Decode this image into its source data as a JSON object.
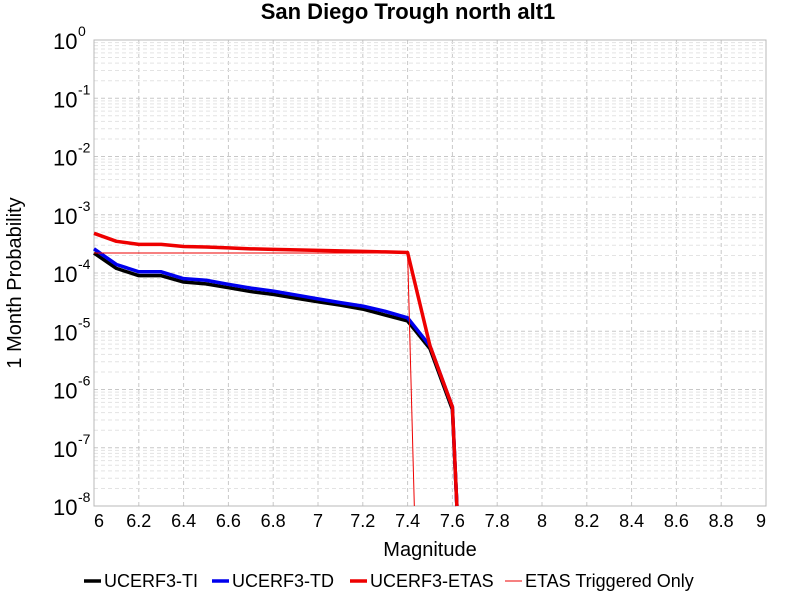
{
  "chart_data": {
    "type": "line",
    "title": "San Diego Trough north alt1",
    "xlabel": "Magnitude",
    "ylabel": "1 Month Probability",
    "xlim": [
      6,
      9
    ],
    "ylim": [
      1e-08,
      1
    ],
    "yscale": "log",
    "grid": true,
    "legend_position": "bottom",
    "x_ticks": [
      "6",
      "6.2",
      "6.4",
      "6.6",
      "6.8",
      "7",
      "7.2",
      "7.4",
      "7.6",
      "7.8",
      "8",
      "8.2",
      "8.4",
      "8.6",
      "8.8",
      "9"
    ],
    "y_ticks": [
      {
        "base": "10",
        "exp": "0"
      },
      {
        "base": "10",
        "exp": "-1"
      },
      {
        "base": "10",
        "exp": "-2"
      },
      {
        "base": "10",
        "exp": "-3"
      },
      {
        "base": "10",
        "exp": "-4"
      },
      {
        "base": "10",
        "exp": "-5"
      },
      {
        "base": "10",
        "exp": "-6"
      },
      {
        "base": "10",
        "exp": "-7"
      },
      {
        "base": "10",
        "exp": "-8"
      }
    ],
    "series": [
      {
        "name": "UCERF3-TI",
        "color": "#000000",
        "width": "thick",
        "x": [
          6.0,
          6.1,
          6.2,
          6.3,
          6.4,
          6.5,
          6.6,
          6.7,
          6.8,
          6.9,
          7.0,
          7.1,
          7.2,
          7.3,
          7.4,
          7.5,
          7.6,
          7.62
        ],
        "y": [
          0.00022,
          0.00012,
          9e-05,
          9e-05,
          7e-05,
          6.5e-05,
          5.6e-05,
          4.8e-05,
          4.3e-05,
          3.7e-05,
          3.2e-05,
          2.8e-05,
          2.4e-05,
          1.9e-05,
          1.5e-05,
          5e-06,
          4.5e-07,
          1e-08
        ]
      },
      {
        "name": "UCERF3-TD",
        "color": "#0000ee",
        "width": "thick",
        "x": [
          6.0,
          6.1,
          6.2,
          6.3,
          6.4,
          6.5,
          6.6,
          6.7,
          6.8,
          6.9,
          7.0,
          7.1,
          7.2,
          7.3,
          7.4,
          7.5,
          7.6,
          7.62
        ],
        "y": [
          0.00026,
          0.00014,
          0.000105,
          0.000105,
          8e-05,
          7.5e-05,
          6.4e-05,
          5.5e-05,
          4.9e-05,
          4.2e-05,
          3.6e-05,
          3.1e-05,
          2.7e-05,
          2.2e-05,
          1.7e-05,
          5.6e-06,
          5e-07,
          1e-08
        ]
      },
      {
        "name": "UCERF3-ETAS",
        "color": "#ee0000",
        "width": "thick",
        "x": [
          6.0,
          6.1,
          6.2,
          6.3,
          6.4,
          6.5,
          6.6,
          6.7,
          6.8,
          6.9,
          7.0,
          7.1,
          7.2,
          7.3,
          7.4,
          7.5,
          7.6,
          7.62
        ],
        "y": [
          0.00048,
          0.00035,
          0.00031,
          0.00031,
          0.000285,
          0.00028,
          0.00027,
          0.00026,
          0.000255,
          0.00025,
          0.000245,
          0.00024,
          0.000235,
          0.00023,
          0.000225,
          5.6e-06,
          5e-07,
          1e-08
        ]
      },
      {
        "name": "ETAS Triggered Only",
        "color": "#ee0000",
        "width": "thin",
        "x": [
          6.0,
          7.4,
          7.43
        ],
        "y": [
          0.00022,
          0.00022,
          1e-08
        ]
      }
    ]
  }
}
